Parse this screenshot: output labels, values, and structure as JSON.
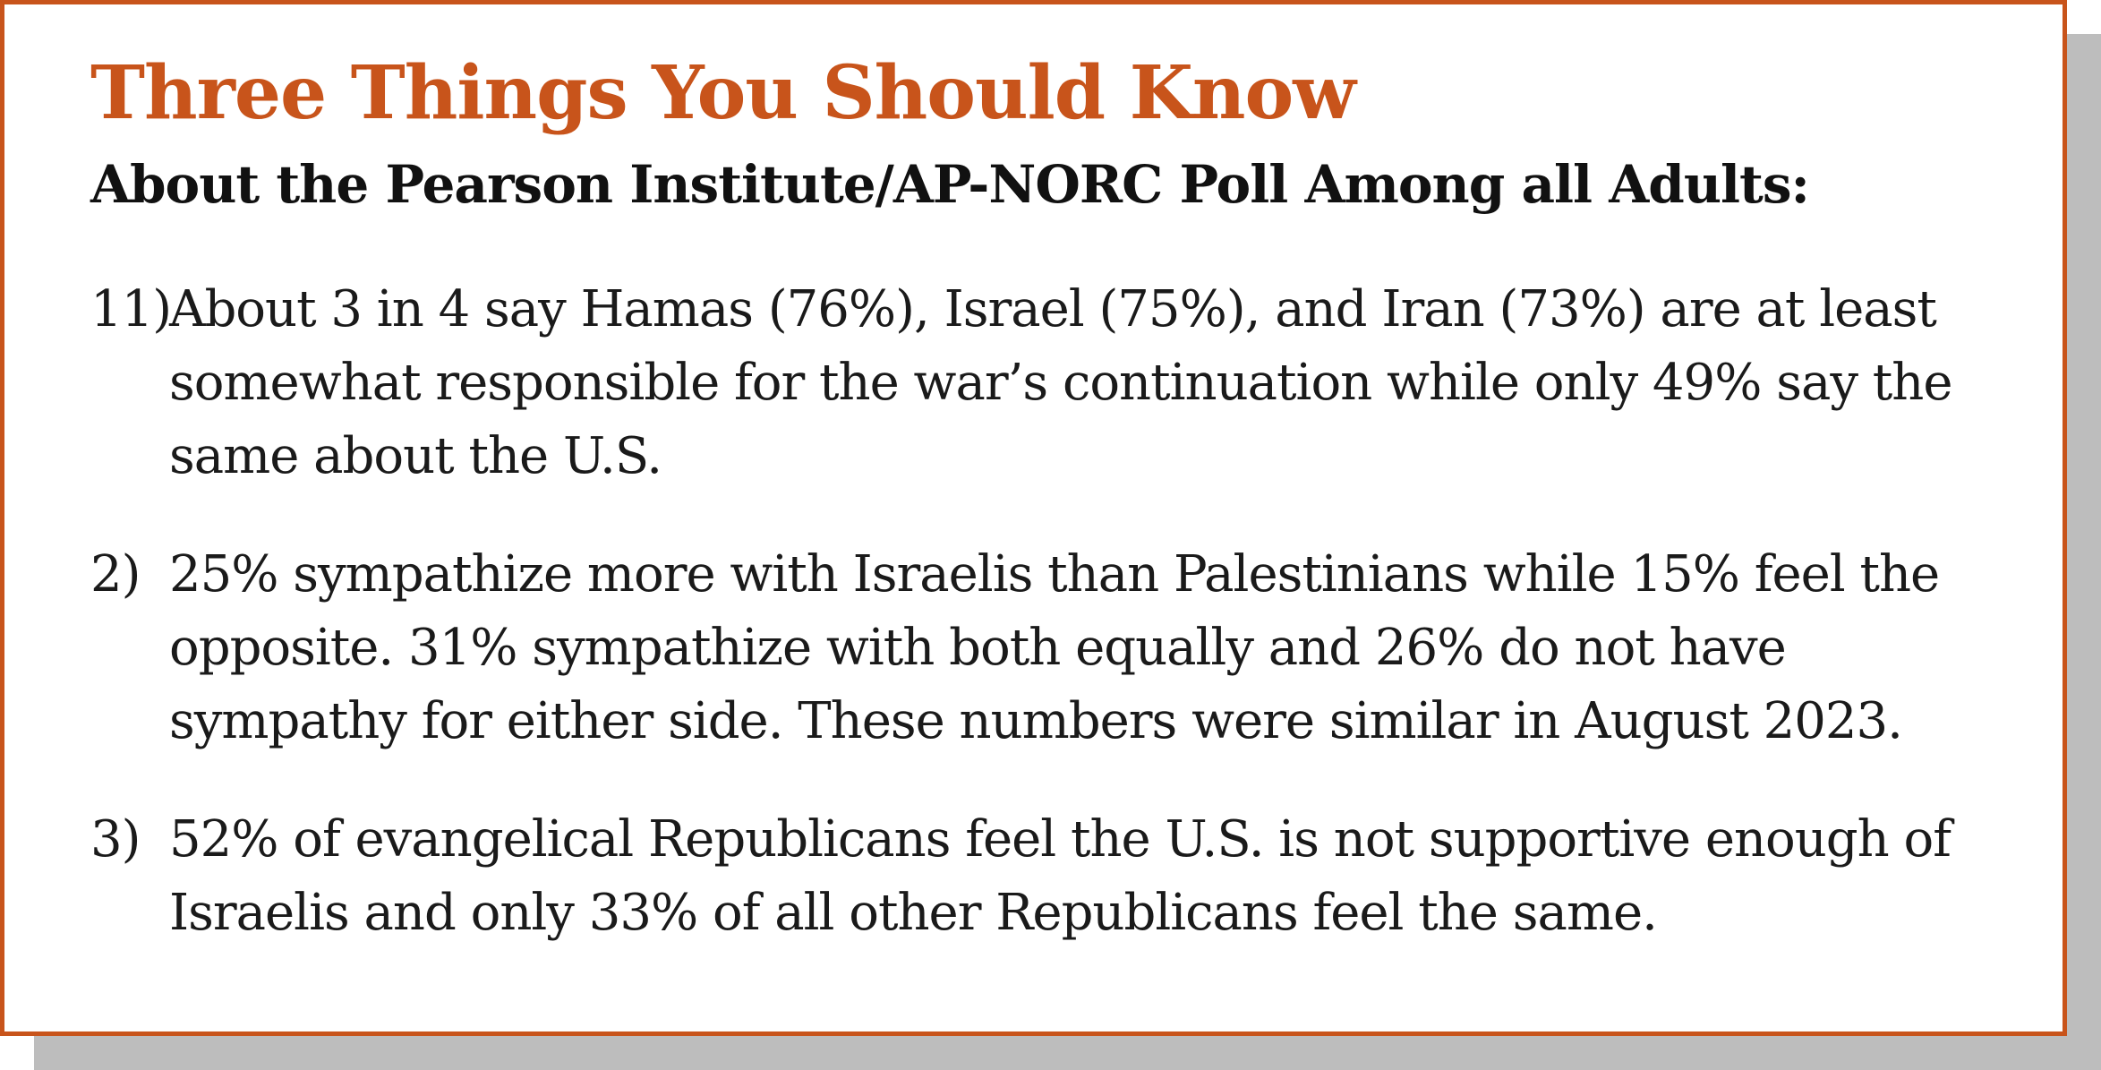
{
  "title": "Three Things You Should Know",
  "subtitle": "About the Pearson Institute/AP-NORC Poll Among all Adults:",
  "points": [
    {
      "number": "11)",
      "text": "About 3 in 4 say Hamas (76%), Israel (75%), and Iran (73%) are at least somewhat responsible for the war’s continuation while only 49% say the same about the U.S."
    },
    {
      "number": "2)",
      "text": "25% sympathize more with Israelis than Palestinians while 15% feel the opposite. 31% sympathize with both equally and 26% do not have sympathy for either side. These numbers were similar in August 2023."
    },
    {
      "number": "3)",
      "text": "52% of evangelical Republicans feel the U.S. is not supportive enough of Israelis and only 33% of all other Republicans feel the same."
    }
  ],
  "colors": {
    "accent": "#c8541b",
    "shadow": "#bdbdbd",
    "text": "#1a1a1a"
  }
}
